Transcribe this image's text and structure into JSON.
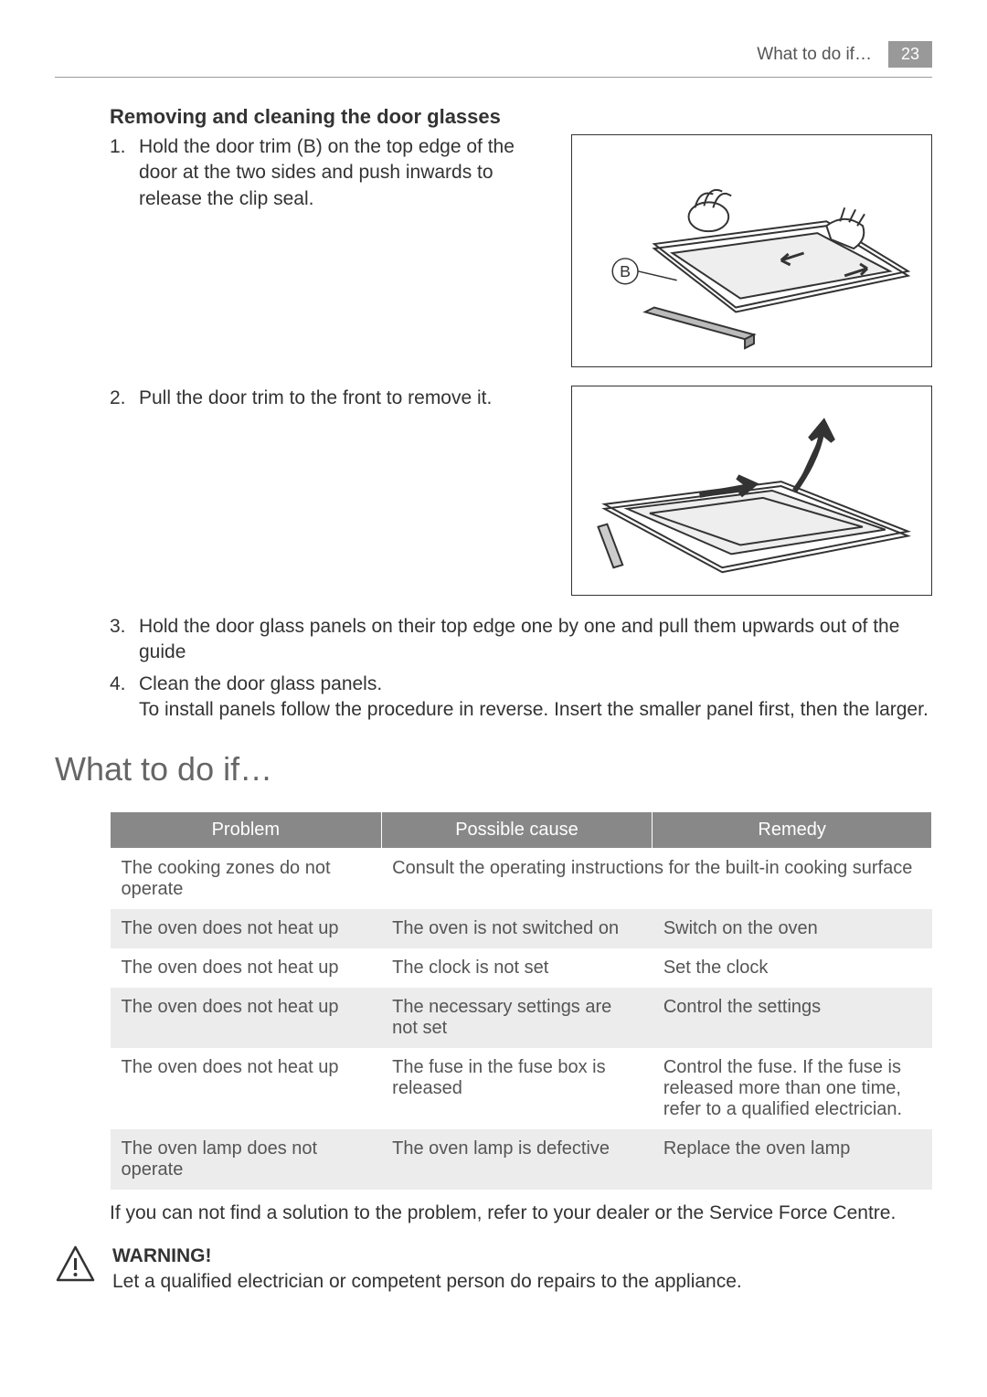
{
  "header": {
    "title": "What to do if…",
    "page": "23"
  },
  "section_heading": "Removing and cleaning the door glasses",
  "step1": {
    "num": "1.",
    "text": "Hold the door trim (B) on the top edge of the door at the two sides and push inwards to release the clip seal.",
    "diagram_label": "B"
  },
  "step2": {
    "num": "2.",
    "text": "Pull the door trim to the front to remove it."
  },
  "step3": {
    "num": "3.",
    "text": "Hold the door glass panels on their top edge one by one and pull them upwards out of the guide"
  },
  "step4": {
    "num": "4.",
    "text": "Clean the door glass panels.",
    "note": "To install panels follow the procedure in reverse. Insert the smaller panel first, then the larger."
  },
  "main_heading": "What to do if…",
  "table": {
    "headers": [
      "Problem",
      "Possible cause",
      "Remedy"
    ],
    "rows": [
      {
        "problem": "The cooking zones do not operate",
        "cause_remedy": "Consult the operating instructions for the built-in cooking surface",
        "span": true
      },
      {
        "problem": "The oven does not heat up",
        "cause": "The oven is not switched on",
        "remedy": "Switch on the oven"
      },
      {
        "problem": "The oven does not heat up",
        "cause": "The clock is not set",
        "remedy": "Set the clock"
      },
      {
        "problem": "The oven does not heat up",
        "cause": "The necessary settings are not set",
        "remedy": "Control the settings"
      },
      {
        "problem": "The oven does not heat up",
        "cause": "The fuse in the fuse box is released",
        "remedy": "Control the fuse. If the fuse is released more than one time, refer to a qualified electrician."
      },
      {
        "problem": "The oven lamp does not operate",
        "cause": "The oven lamp is defective",
        "remedy": "Replace the oven lamp"
      }
    ]
  },
  "after_table": "If you can not find a solution to the problem, refer to your dealer or the Service Force Centre.",
  "warning": {
    "label": "WARNING!",
    "text": "Let a qualified electrician or competent person do repairs to the appliance."
  },
  "colors": {
    "header_bg": "#888888",
    "page_bg": "#999999",
    "row_alt": "#ececec",
    "text": "#333333",
    "h1": "#666666"
  }
}
